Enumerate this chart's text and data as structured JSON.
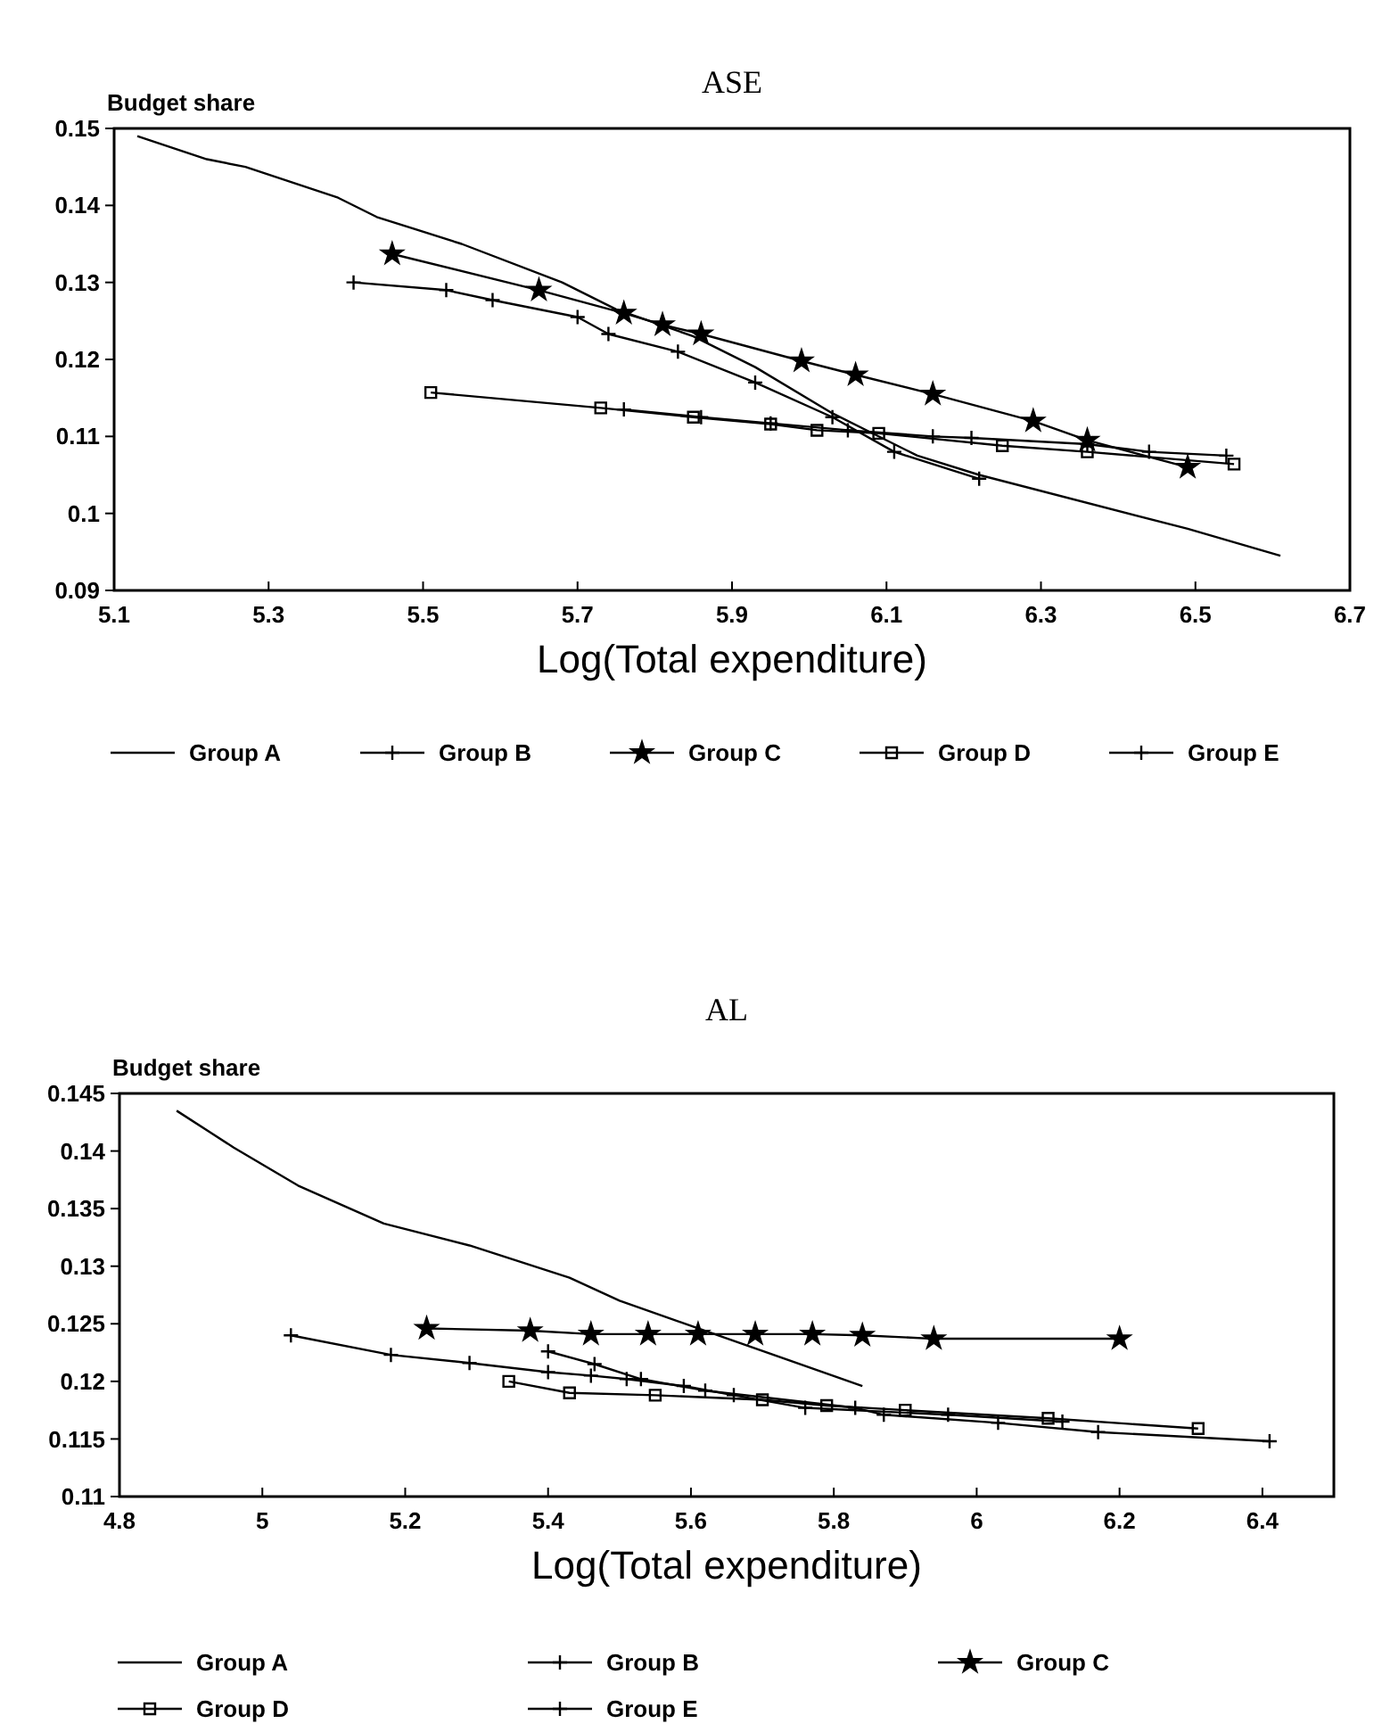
{
  "chart_data": [
    {
      "type": "line",
      "title": "ASE",
      "ylabel": "Budget share",
      "xlabel": "Log(Total expenditure)",
      "xlim": [
        5.1,
        6.7
      ],
      "ylim": [
        0.09,
        0.15
      ],
      "xticks": [
        5.1,
        5.3,
        5.5,
        5.7,
        5.9,
        6.1,
        6.3,
        6.5,
        6.7
      ],
      "yticks": [
        0.09,
        0.1,
        0.11,
        0.12,
        0.13,
        0.14,
        0.15
      ],
      "grid": false,
      "legend": "bottom",
      "line_style": "solid",
      "series": [
        {
          "name": "Group A",
          "color": "#000000",
          "marker": "none",
          "x": [
            5.13,
            5.22,
            5.27,
            5.39,
            5.44,
            5.55,
            5.68,
            5.75,
            5.85,
            5.93,
            6.03,
            6.08,
            6.14,
            6.22,
            6.49,
            6.61
          ],
          "values": [
            0.149,
            0.146,
            0.145,
            0.141,
            0.1385,
            0.135,
            0.13,
            0.1265,
            0.123,
            0.119,
            0.113,
            0.1105,
            0.1075,
            0.105,
            0.098,
            0.0945
          ]
        },
        {
          "name": "Group B",
          "color": "#000000",
          "marker": "cross",
          "x": [
            5.41,
            5.53,
            5.59,
            5.7,
            5.74,
            5.83,
            5.93,
            6.03,
            6.11,
            6.22
          ],
          "values": [
            0.13,
            0.129,
            0.1277,
            0.1255,
            0.1233,
            0.121,
            0.117,
            0.1125,
            0.108,
            0.1045
          ]
        },
        {
          "name": "Group C",
          "color": "#000000",
          "marker": "star",
          "x": [
            5.46,
            5.65,
            5.76,
            5.81,
            5.86,
            5.99,
            6.06,
            6.16,
            6.29,
            6.36,
            6.49
          ],
          "values": [
            0.1337,
            0.129,
            0.126,
            0.1245,
            0.1233,
            0.1198,
            0.118,
            0.1155,
            0.112,
            0.1095,
            0.106
          ]
        },
        {
          "name": "Group D",
          "color": "#000000",
          "marker": "square",
          "x": [
            5.51,
            5.73,
            5.85,
            5.95,
            6.01,
            6.09,
            6.25,
            6.36,
            6.55
          ],
          "values": [
            0.1157,
            0.1137,
            0.1125,
            0.1116,
            0.1108,
            0.1104,
            0.1088,
            0.108,
            0.1064
          ]
        },
        {
          "name": "Group E",
          "color": "#000000",
          "marker": "cross",
          "x": [
            5.76,
            5.86,
            5.95,
            6.05,
            6.16,
            6.21,
            6.36,
            6.44,
            6.54
          ],
          "values": [
            0.1135,
            0.1125,
            0.1117,
            0.1108,
            0.11,
            0.1098,
            0.109,
            0.108,
            0.1075
          ]
        }
      ]
    },
    {
      "type": "line",
      "title": "AL",
      "ylabel": "Budget share",
      "xlabel": "Log(Total expenditure)",
      "xlim": [
        4.8,
        6.5
      ],
      "ylim": [
        0.11,
        0.145
      ],
      "xticks": [
        4.8,
        5,
        5.2,
        5.4,
        5.6,
        5.8,
        6,
        6.2,
        6.4
      ],
      "yticks": [
        0.11,
        0.115,
        0.12,
        0.125,
        0.13,
        0.135,
        0.14,
        0.145
      ],
      "grid": false,
      "legend": "bottom",
      "line_style": "solid",
      "series": [
        {
          "name": "Group A",
          "color": "#000000",
          "marker": "none",
          "x": [
            4.88,
            4.96,
            5.05,
            5.17,
            5.29,
            5.43,
            5.5,
            5.61,
            5.84
          ],
          "values": [
            0.1435,
            0.1403,
            0.137,
            0.1337,
            0.1318,
            0.129,
            0.127,
            0.1246,
            0.1196
          ]
        },
        {
          "name": "Group B",
          "color": "#000000",
          "marker": "cross",
          "x": [
            5.04,
            5.18,
            5.29,
            5.4,
            5.46,
            5.51,
            5.59,
            5.66,
            5.76,
            5.96,
            6.12
          ],
          "values": [
            0.124,
            0.1223,
            0.1216,
            0.1208,
            0.1205,
            0.1202,
            0.1196,
            0.1188,
            0.1177,
            0.1171,
            0.1165
          ]
        },
        {
          "name": "Group C",
          "color": "#000000",
          "marker": "star",
          "x": [
            5.23,
            5.375,
            5.46,
            5.54,
            5.61,
            5.69,
            5.77,
            5.84,
            5.94,
            6.2
          ],
          "values": [
            0.1246,
            0.1244,
            0.1241,
            0.1241,
            0.1241,
            0.1241,
            0.1241,
            0.124,
            0.1237,
            0.1237
          ]
        },
        {
          "name": "Group D",
          "color": "#000000",
          "marker": "square",
          "x": [
            5.345,
            5.43,
            5.55,
            5.7,
            5.79,
            5.9,
            6.1,
            6.31
          ],
          "values": [
            0.12,
            0.119,
            0.1188,
            0.1184,
            0.1179,
            0.1175,
            0.1168,
            0.1159
          ]
        },
        {
          "name": "Group E",
          "color": "#000000",
          "marker": "cross",
          "x": [
            5.4,
            5.465,
            5.53,
            5.62,
            5.83,
            5.87,
            6.03,
            6.17,
            6.41
          ],
          "values": [
            0.1226,
            0.1215,
            0.1202,
            0.1192,
            0.1177,
            0.1171,
            0.1164,
            0.1156,
            0.1148
          ]
        }
      ]
    }
  ]
}
